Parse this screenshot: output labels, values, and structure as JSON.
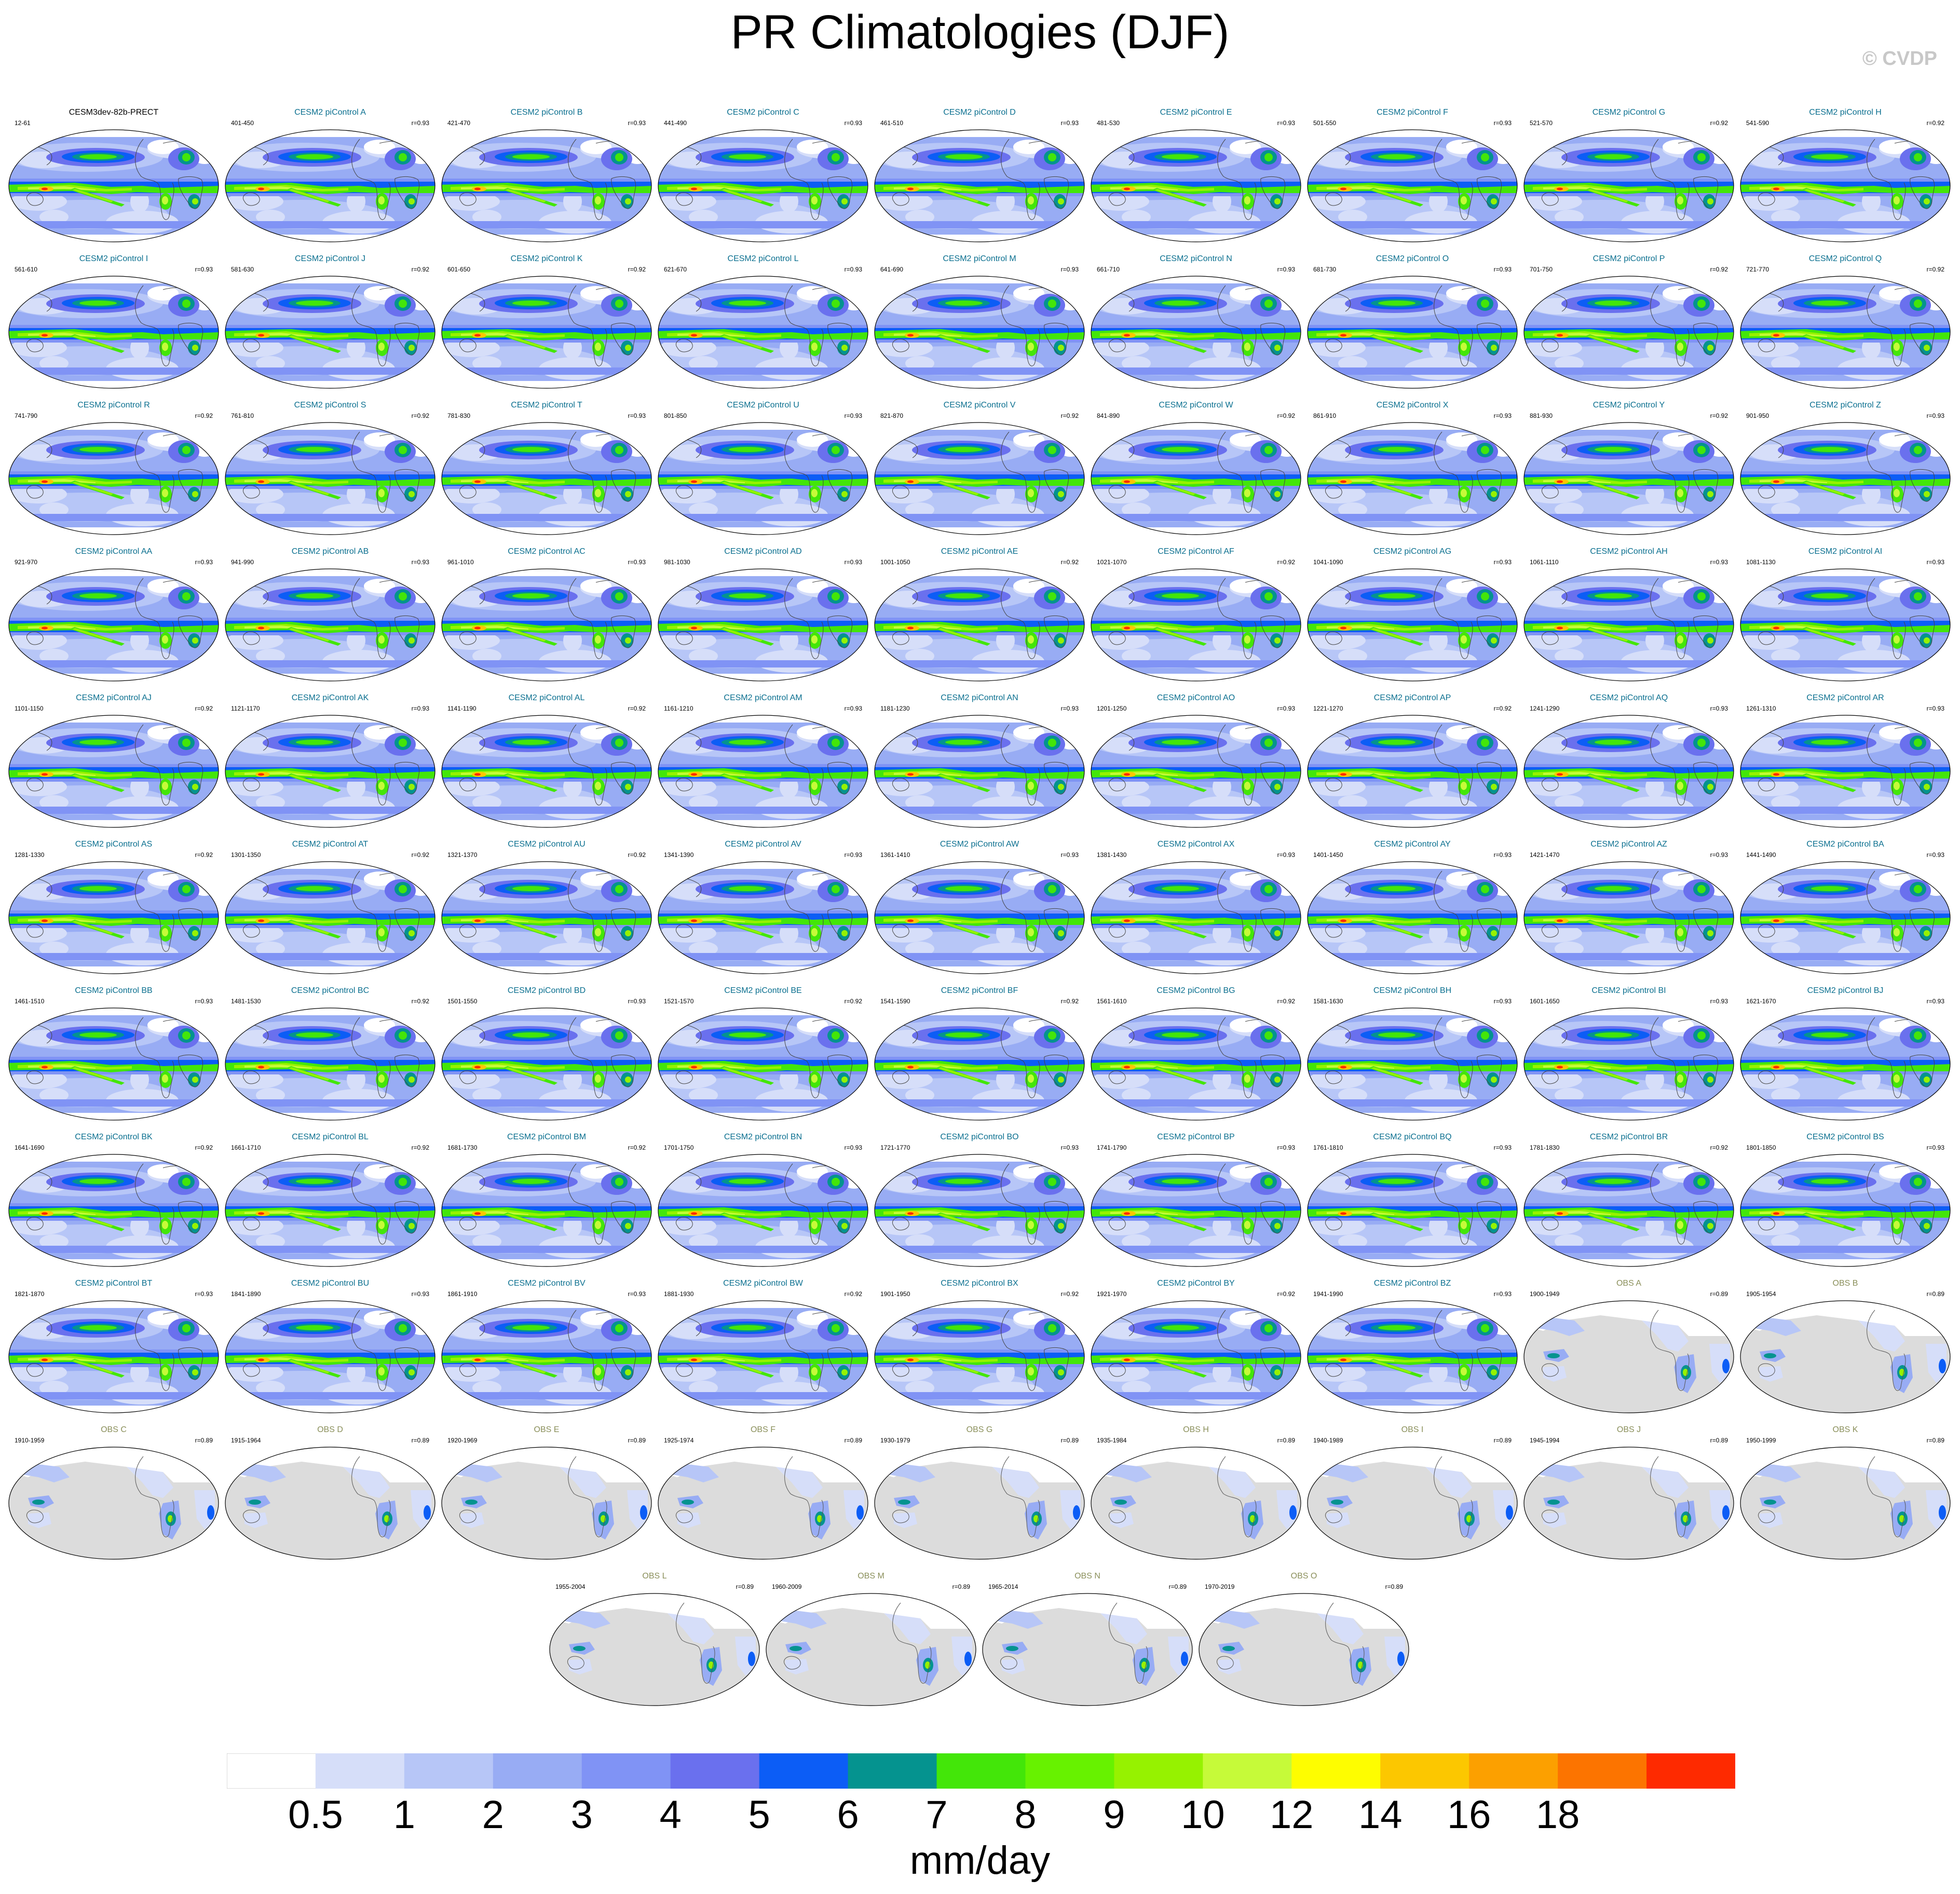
{
  "title": "PR Climatologies (DJF)",
  "copyright": "© CVDP",
  "units": "mm/day",
  "colorbar": {
    "labels": [
      "0.5",
      "1",
      "2",
      "3",
      "4",
      "5",
      "6",
      "7",
      "8",
      "9",
      "10",
      "12",
      "14",
      "16",
      "18"
    ],
    "colors": [
      "#ffffff",
      "#d6def9",
      "#b7c6f7",
      "#98acf4",
      "#8093f5",
      "#6a70ee",
      "#0c5df6",
      "#05938f",
      "#43e609",
      "#67f200",
      "#96f200",
      "#c6fa39",
      "#fefd00",
      "#fcc700",
      "#fca000",
      "#fc7400",
      "#fe2a00"
    ]
  },
  "panels": [
    {
      "title": "CESM3dev-82b-PRECT",
      "years": "12-61",
      "r": "",
      "kind": "ref"
    },
    {
      "title": "CESM2 piControl A",
      "years": "401-450",
      "r": "r=0.93",
      "kind": "model"
    },
    {
      "title": "CESM2 piControl B",
      "years": "421-470",
      "r": "r=0.93",
      "kind": "model"
    },
    {
      "title": "CESM2 piControl C",
      "years": "441-490",
      "r": "r=0.93",
      "kind": "model"
    },
    {
      "title": "CESM2 piControl D",
      "years": "461-510",
      "r": "r=0.93",
      "kind": "model"
    },
    {
      "title": "CESM2 piControl E",
      "years": "481-530",
      "r": "r=0.93",
      "kind": "model"
    },
    {
      "title": "CESM2 piControl F",
      "years": "501-550",
      "r": "r=0.93",
      "kind": "model"
    },
    {
      "title": "CESM2 piControl G",
      "years": "521-570",
      "r": "r=0.92",
      "kind": "model"
    },
    {
      "title": "CESM2 piControl H",
      "years": "541-590",
      "r": "r=0.92",
      "kind": "model"
    },
    {
      "title": "CESM2 piControl I",
      "years": "561-610",
      "r": "r=0.93",
      "kind": "model"
    },
    {
      "title": "CESM2 piControl J",
      "years": "581-630",
      "r": "r=0.92",
      "kind": "model"
    },
    {
      "title": "CESM2 piControl K",
      "years": "601-650",
      "r": "r=0.92",
      "kind": "model"
    },
    {
      "title": "CESM2 piControl L",
      "years": "621-670",
      "r": "r=0.93",
      "kind": "model"
    },
    {
      "title": "CESM2 piControl M",
      "years": "641-690",
      "r": "r=0.93",
      "kind": "model"
    },
    {
      "title": "CESM2 piControl N",
      "years": "661-710",
      "r": "r=0.93",
      "kind": "model"
    },
    {
      "title": "CESM2 piControl O",
      "years": "681-730",
      "r": "r=0.93",
      "kind": "model"
    },
    {
      "title": "CESM2 piControl P",
      "years": "701-750",
      "r": "r=0.92",
      "kind": "model"
    },
    {
      "title": "CESM2 piControl Q",
      "years": "721-770",
      "r": "r=0.92",
      "kind": "model"
    },
    {
      "title": "CESM2 piControl R",
      "years": "741-790",
      "r": "r=0.92",
      "kind": "model"
    },
    {
      "title": "CESM2 piControl S",
      "years": "761-810",
      "r": "r=0.92",
      "kind": "model"
    },
    {
      "title": "CESM2 piControl T",
      "years": "781-830",
      "r": "r=0.93",
      "kind": "model"
    },
    {
      "title": "CESM2 piControl U",
      "years": "801-850",
      "r": "r=0.93",
      "kind": "model"
    },
    {
      "title": "CESM2 piControl V",
      "years": "821-870",
      "r": "r=0.92",
      "kind": "model"
    },
    {
      "title": "CESM2 piControl W",
      "years": "841-890",
      "r": "r=0.92",
      "kind": "model"
    },
    {
      "title": "CESM2 piControl X",
      "years": "861-910",
      "r": "r=0.93",
      "kind": "model"
    },
    {
      "title": "CESM2 piControl Y",
      "years": "881-930",
      "r": "r=0.92",
      "kind": "model"
    },
    {
      "title": "CESM2 piControl Z",
      "years": "901-950",
      "r": "r=0.93",
      "kind": "model"
    },
    {
      "title": "CESM2 piControl AA",
      "years": "921-970",
      "r": "r=0.93",
      "kind": "model"
    },
    {
      "title": "CESM2 piControl AB",
      "years": "941-990",
      "r": "r=0.93",
      "kind": "model"
    },
    {
      "title": "CESM2 piControl AC",
      "years": "961-1010",
      "r": "r=0.93",
      "kind": "model"
    },
    {
      "title": "CESM2 piControl AD",
      "years": "981-1030",
      "r": "r=0.93",
      "kind": "model"
    },
    {
      "title": "CESM2 piControl AE",
      "years": "1001-1050",
      "r": "r=0.92",
      "kind": "model"
    },
    {
      "title": "CESM2 piControl AF",
      "years": "1021-1070",
      "r": "r=0.92",
      "kind": "model"
    },
    {
      "title": "CESM2 piControl AG",
      "years": "1041-1090",
      "r": "r=0.93",
      "kind": "model"
    },
    {
      "title": "CESM2 piControl AH",
      "years": "1061-1110",
      "r": "r=0.93",
      "kind": "model"
    },
    {
      "title": "CESM2 piControl AI",
      "years": "1081-1130",
      "r": "r=0.93",
      "kind": "model"
    },
    {
      "title": "CESM2 piControl AJ",
      "years": "1101-1150",
      "r": "r=0.92",
      "kind": "model"
    },
    {
      "title": "CESM2 piControl AK",
      "years": "1121-1170",
      "r": "r=0.93",
      "kind": "model"
    },
    {
      "title": "CESM2 piControl AL",
      "years": "1141-1190",
      "r": "r=0.92",
      "kind": "model"
    },
    {
      "title": "CESM2 piControl AM",
      "years": "1161-1210",
      "r": "r=0.93",
      "kind": "model"
    },
    {
      "title": "CESM2 piControl AN",
      "years": "1181-1230",
      "r": "r=0.93",
      "kind": "model"
    },
    {
      "title": "CESM2 piControl AO",
      "years": "1201-1250",
      "r": "r=0.93",
      "kind": "model"
    },
    {
      "title": "CESM2 piControl AP",
      "years": "1221-1270",
      "r": "r=0.92",
      "kind": "model"
    },
    {
      "title": "CESM2 piControl AQ",
      "years": "1241-1290",
      "r": "r=0.93",
      "kind": "model"
    },
    {
      "title": "CESM2 piControl AR",
      "years": "1261-1310",
      "r": "r=0.93",
      "kind": "model"
    },
    {
      "title": "CESM2 piControl AS",
      "years": "1281-1330",
      "r": "r=0.92",
      "kind": "model"
    },
    {
      "title": "CESM2 piControl AT",
      "years": "1301-1350",
      "r": "r=0.92",
      "kind": "model"
    },
    {
      "title": "CESM2 piControl AU",
      "years": "1321-1370",
      "r": "r=0.92",
      "kind": "model"
    },
    {
      "title": "CESM2 piControl AV",
      "years": "1341-1390",
      "r": "r=0.93",
      "kind": "model"
    },
    {
      "title": "CESM2 piControl AW",
      "years": "1361-1410",
      "r": "r=0.93",
      "kind": "model"
    },
    {
      "title": "CESM2 piControl AX",
      "years": "1381-1430",
      "r": "r=0.93",
      "kind": "model"
    },
    {
      "title": "CESM2 piControl AY",
      "years": "1401-1450",
      "r": "r=0.93",
      "kind": "model"
    },
    {
      "title": "CESM2 piControl AZ",
      "years": "1421-1470",
      "r": "r=0.93",
      "kind": "model"
    },
    {
      "title": "CESM2 piControl BA",
      "years": "1441-1490",
      "r": "r=0.93",
      "kind": "model"
    },
    {
      "title": "CESM2 piControl BB",
      "years": "1461-1510",
      "r": "r=0.93",
      "kind": "model"
    },
    {
      "title": "CESM2 piControl BC",
      "years": "1481-1530",
      "r": "r=0.92",
      "kind": "model"
    },
    {
      "title": "CESM2 piControl BD",
      "years": "1501-1550",
      "r": "r=0.93",
      "kind": "model"
    },
    {
      "title": "CESM2 piControl BE",
      "years": "1521-1570",
      "r": "r=0.92",
      "kind": "model"
    },
    {
      "title": "CESM2 piControl BF",
      "years": "1541-1590",
      "r": "r=0.92",
      "kind": "model"
    },
    {
      "title": "CESM2 piControl BG",
      "years": "1561-1610",
      "r": "r=0.92",
      "kind": "model"
    },
    {
      "title": "CESM2 piControl BH",
      "years": "1581-1630",
      "r": "r=0.93",
      "kind": "model"
    },
    {
      "title": "CESM2 piControl BI",
      "years": "1601-1650",
      "r": "r=0.93",
      "kind": "model"
    },
    {
      "title": "CESM2 piControl BJ",
      "years": "1621-1670",
      "r": "r=0.93",
      "kind": "model"
    },
    {
      "title": "CESM2 piControl BK",
      "years": "1641-1690",
      "r": "r=0.92",
      "kind": "model"
    },
    {
      "title": "CESM2 piControl BL",
      "years": "1661-1710",
      "r": "r=0.92",
      "kind": "model"
    },
    {
      "title": "CESM2 piControl BM",
      "years": "1681-1730",
      "r": "r=0.92",
      "kind": "model"
    },
    {
      "title": "CESM2 piControl BN",
      "years": "1701-1750",
      "r": "r=0.93",
      "kind": "model"
    },
    {
      "title": "CESM2 piControl BO",
      "years": "1721-1770",
      "r": "r=0.93",
      "kind": "model"
    },
    {
      "title": "CESM2 piControl BP",
      "years": "1741-1790",
      "r": "r=0.93",
      "kind": "model"
    },
    {
      "title": "CESM2 piControl BQ",
      "years": "1761-1810",
      "r": "r=0.93",
      "kind": "model"
    },
    {
      "title": "CESM2 piControl BR",
      "years": "1781-1830",
      "r": "r=0.92",
      "kind": "model"
    },
    {
      "title": "CESM2 piControl BS",
      "years": "1801-1850",
      "r": "r=0.93",
      "kind": "model"
    },
    {
      "title": "CESM2 piControl BT",
      "years": "1821-1870",
      "r": "r=0.93",
      "kind": "model"
    },
    {
      "title": "CESM2 piControl BU",
      "years": "1841-1890",
      "r": "r=0.93",
      "kind": "model"
    },
    {
      "title": "CESM2 piControl BV",
      "years": "1861-1910",
      "r": "r=0.93",
      "kind": "model"
    },
    {
      "title": "CESM2 piControl BW",
      "years": "1881-1930",
      "r": "r=0.92",
      "kind": "model"
    },
    {
      "title": "CESM2 piControl BX",
      "years": "1901-1950",
      "r": "r=0.92",
      "kind": "model"
    },
    {
      "title": "CESM2 piControl BY",
      "years": "1921-1970",
      "r": "r=0.92",
      "kind": "model"
    },
    {
      "title": "CESM2 piControl BZ",
      "years": "1941-1990",
      "r": "r=0.93",
      "kind": "model"
    },
    {
      "title": "OBS A",
      "years": "1900-1949",
      "r": "r=0.89",
      "kind": "obs"
    },
    {
      "title": "OBS B",
      "years": "1905-1954",
      "r": "r=0.89",
      "kind": "obs"
    },
    {
      "title": "OBS C",
      "years": "1910-1959",
      "r": "r=0.89",
      "kind": "obs"
    },
    {
      "title": "OBS D",
      "years": "1915-1964",
      "r": "r=0.89",
      "kind": "obs"
    },
    {
      "title": "OBS E",
      "years": "1920-1969",
      "r": "r=0.89",
      "kind": "obs"
    },
    {
      "title": "OBS F",
      "years": "1925-1974",
      "r": "r=0.89",
      "kind": "obs"
    },
    {
      "title": "OBS G",
      "years": "1930-1979",
      "r": "r=0.89",
      "kind": "obs"
    },
    {
      "title": "OBS H",
      "years": "1935-1984",
      "r": "r=0.89",
      "kind": "obs"
    },
    {
      "title": "OBS I",
      "years": "1940-1989",
      "r": "r=0.89",
      "kind": "obs"
    },
    {
      "title": "OBS J",
      "years": "1945-1994",
      "r": "r=0.89",
      "kind": "obs"
    },
    {
      "title": "OBS K",
      "years": "1950-1999",
      "r": "r=0.89",
      "kind": "obs"
    },
    {
      "title": "OBS L",
      "years": "1955-2004",
      "r": "r=0.89",
      "kind": "obs"
    },
    {
      "title": "OBS M",
      "years": "1960-2009",
      "r": "r=0.89",
      "kind": "obs"
    },
    {
      "title": "OBS N",
      "years": "1965-2014",
      "r": "r=0.89",
      "kind": "obs"
    },
    {
      "title": "OBS O",
      "years": "1970-2019",
      "r": "r=0.89",
      "kind": "obs"
    }
  ]
}
